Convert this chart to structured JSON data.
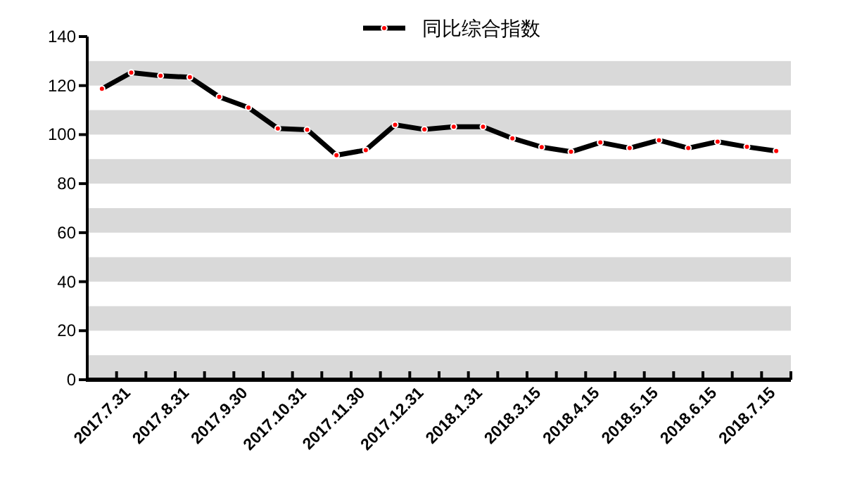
{
  "chart_data": {
    "type": "line",
    "categories": [
      null,
      "2017.7.31",
      null,
      "2017.8.31",
      null,
      "2017.9.30",
      null,
      "2017.10.31",
      null,
      "2017.11.30",
      null,
      "2017.12.31",
      null,
      "2018.1.31",
      null,
      "2018.3.15",
      null,
      "2018.4.15",
      null,
      "2018.5.15",
      null,
      "2018.6.15",
      null,
      "2018.7.15"
    ],
    "series": [
      {
        "name": "同比综合指数",
        "color": "#000000",
        "values": [
          118.7,
          125.3,
          124,
          123.4,
          115.4,
          111,
          102.5,
          102,
          91.6,
          93.7,
          104,
          102.1,
          103.2,
          103.2,
          98.5,
          94.9,
          93,
          96.8,
          94.5,
          97.7,
          94.5,
          97.1,
          95,
          93.3
        ]
      }
    ],
    "ylim": [
      0,
      140
    ],
    "yticks": [
      0,
      20,
      40,
      60,
      80,
      100,
      120,
      140
    ],
    "bands": [
      {
        "axis": "y",
        "from": 0,
        "to": 10,
        "color": "#d9d9d9"
      },
      {
        "axis": "y",
        "from": 20,
        "to": 30,
        "color": "#d9d9d9"
      },
      {
        "axis": "y",
        "from": 40,
        "to": 50,
        "color": "#d9d9d9"
      },
      {
        "axis": "y",
        "from": 60,
        "to": 70,
        "color": "#d9d9d9"
      },
      {
        "axis": "y",
        "from": 80,
        "to": 90,
        "color": "#d9d9d9"
      },
      {
        "axis": "y",
        "from": 100,
        "to": 110,
        "color": "#d9d9d9"
      },
      {
        "axis": "y",
        "from": 120,
        "to": 130,
        "color": "#d9d9d9"
      }
    ],
    "legend": "top",
    "marker": "circle",
    "line_style": "solid",
    "grid": false
  }
}
